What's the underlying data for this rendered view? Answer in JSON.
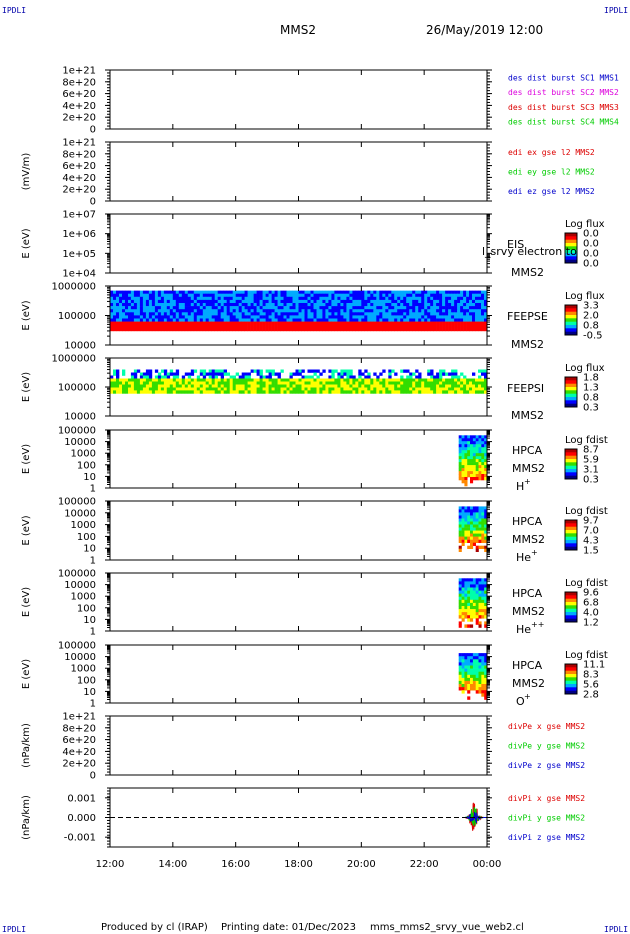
{
  "header": {
    "corner_left": "IPDLI",
    "corner_right": "IPDLI",
    "spacecraft": "MMS2",
    "datetime": "26/May/2019 12:00"
  },
  "footer": {
    "corner_left": "IPDLI",
    "corner_right": "IPDLI",
    "produced_by": "Produced by cl (IRAP)",
    "printing_date": "Printing date: 01/Dec/2023",
    "filename": "mms_mms2_srvy_vue_web2.cl"
  },
  "colors": {
    "spectrogram_palette": [
      "#000080",
      "#0000ff",
      "#00aaff",
      "#00ffaa",
      "#33dd00",
      "#ffff00",
      "#ff8800",
      "#ff0000",
      "#aa0000"
    ],
    "black": "#000000",
    "red": "#dd0000",
    "green": "#00cc00",
    "blue": "#0000cc",
    "magenta": "#dd00dd"
  },
  "chart_data": [
    {
      "type": "line",
      "ylabel": "",
      "ytick_labels": [
        "0",
        "2e+20",
        "4e+20",
        "6e+20",
        "8e+20",
        "1e+21"
      ],
      "ylim": [
        0,
        1e+21
      ],
      "series": [
        {
          "name": "des dist burst SC1 MMS1",
          "color": "#0000cc",
          "values": []
        },
        {
          "name": "des dist burst SC2 MMS2",
          "color": "#dd00dd",
          "values": []
        },
        {
          "name": "des dist burst SC3 MMS3",
          "color": "#dd0000",
          "values": []
        },
        {
          "name": "des dist burst SC4 MMS4",
          "color": "#00cc00",
          "values": []
        }
      ]
    },
    {
      "type": "line",
      "ylabel": "(mV/m)",
      "ytick_labels": [
        "0",
        "2e+20",
        "4e+20",
        "6e+20",
        "8e+20",
        "1e+21"
      ],
      "ylim": [
        0,
        1e+21
      ],
      "series": [
        {
          "name": "edi ex gse l2 MMS2",
          "color": "#dd0000",
          "values": []
        },
        {
          "name": "edi ey gse l2 MMS2",
          "color": "#00cc00",
          "values": []
        },
        {
          "name": "edi ez gse l2 MMS2",
          "color": "#0000cc",
          "values": []
        }
      ]
    },
    {
      "type": "heatmap",
      "ylabel": "E (eV)",
      "ytick_labels": [
        "1e+04",
        "1e+05",
        "1e+06",
        "1e+07"
      ],
      "ylim": [
        10000.0,
        10000000.0
      ],
      "instrument": "EIS",
      "spacecraft": "MMS2",
      "overlay_text": "l_srvy electron to",
      "colorbar": {
        "title": "Log flux",
        "ticks": [
          "0.0",
          "0.0",
          "0.0",
          "0.0"
        ]
      },
      "x_range": [],
      "e_range": []
    },
    {
      "type": "heatmap",
      "ylabel": "E (eV)",
      "ytick_labels": [
        "10000",
        "100000",
        "1000000"
      ],
      "ylim": [
        10000,
        1000000
      ],
      "instrument": "FEEPSE",
      "spacecraft": "MMS2",
      "colorbar": {
        "title": "Log flux",
        "ticks": [
          "3.3",
          "2.0",
          "0.8",
          "-0.5"
        ]
      },
      "x_range": [
        12,
        24
      ],
      "e_range": [
        30000,
        700000
      ]
    },
    {
      "type": "heatmap",
      "ylabel": "E (eV)",
      "ytick_labels": [
        "10000",
        "100000",
        "1000000"
      ],
      "ylim": [
        10000,
        1000000
      ],
      "instrument": "FEEPSI",
      "spacecraft": "MMS2",
      "colorbar": {
        "title": "Log flux",
        "ticks": [
          "1.8",
          "1.3",
          "0.8",
          "0.3"
        ]
      },
      "x_range": [
        12,
        24
      ],
      "e_range": [
        60000,
        400000
      ]
    },
    {
      "type": "heatmap",
      "ylabel": "E (eV)",
      "ytick_labels": [
        "1",
        "10",
        "100",
        "1000",
        "10000",
        "100000"
      ],
      "ylim": [
        1,
        100000
      ],
      "instrument": "HPCA",
      "spacecraft": "MMS2",
      "species": "H",
      "species_sup": "+",
      "colorbar": {
        "title": "Log fdist",
        "ticks": [
          "8.7",
          "5.9",
          "3.1",
          "0.3"
        ]
      },
      "x_range": [
        23.1,
        24
      ],
      "e_range": [
        1.5,
        35000
      ]
    },
    {
      "type": "heatmap",
      "ylabel": "E (eV)",
      "ytick_labels": [
        "1",
        "10",
        "100",
        "1000",
        "10000",
        "100000"
      ],
      "ylim": [
        1,
        100000
      ],
      "instrument": "HPCA",
      "spacecraft": "MMS2",
      "species": "He",
      "species_sup": "+",
      "colorbar": {
        "title": "Log fdist",
        "ticks": [
          "9.7",
          "7.0",
          "4.3",
          "1.5"
        ]
      },
      "x_range": [
        23.1,
        24
      ],
      "e_range": [
        5,
        35000
      ]
    },
    {
      "type": "heatmap",
      "ylabel": "E (eV)",
      "ytick_labels": [
        "1",
        "10",
        "100",
        "1000",
        "10000",
        "100000"
      ],
      "ylim": [
        1,
        100000
      ],
      "instrument": "HPCA",
      "spacecraft": "MMS2",
      "species": "He",
      "species_sup": "++",
      "colorbar": {
        "title": "Log fdist",
        "ticks": [
          "9.6",
          "6.8",
          "4.0",
          "1.2"
        ]
      },
      "x_range": [
        23.1,
        24
      ],
      "e_range": [
        2,
        35000
      ]
    },
    {
      "type": "heatmap",
      "ylabel": "E (eV)",
      "ytick_labels": [
        "1",
        "10",
        "100",
        "1000",
        "10000",
        "100000"
      ],
      "ylim": [
        1,
        100000
      ],
      "instrument": "HPCA",
      "spacecraft": "MMS2",
      "species": "O",
      "species_sup": "+",
      "colorbar": {
        "title": "Log fdist",
        "ticks": [
          "11.1",
          "8.3",
          "5.6",
          "2.8"
        ]
      },
      "x_range": [
        23.1,
        24
      ],
      "e_range": [
        2,
        20000
      ]
    },
    {
      "type": "line",
      "ylabel": "(nPa/km)",
      "ytick_labels": [
        "0",
        "2e+20",
        "4e+20",
        "6e+20",
        "8e+20",
        "1e+21"
      ],
      "ylim": [
        0,
        1e+21
      ],
      "series": [
        {
          "name": "divPe x gse MMS2",
          "color": "#dd0000",
          "values": []
        },
        {
          "name": "divPe y gse MMS2",
          "color": "#00cc00",
          "values": []
        },
        {
          "name": "divPe z gse MMS2",
          "color": "#0000cc",
          "values": []
        }
      ]
    },
    {
      "type": "line",
      "ylabel": "(nPa/km)",
      "ytick_labels": [
        "-0.001",
        "0.000",
        "0.001"
      ],
      "ylim": [
        -0.0015,
        0.0015
      ],
      "series": [
        {
          "name": "divPi x gse MMS2",
          "color": "#dd0000",
          "x_range": [
            23.3,
            24
          ],
          "amplitude": 0.0008
        },
        {
          "name": "divPi y gse MMS2",
          "color": "#00cc00",
          "x_range": [
            23.3,
            24
          ],
          "amplitude": 0.0006
        },
        {
          "name": "divPi z gse MMS2",
          "color": "#0000cc",
          "x_range": [
            23.3,
            24
          ],
          "amplitude": 0.0004
        }
      ]
    }
  ],
  "xaxis": {
    "tick_labels": [
      "12:00",
      "14:00",
      "16:00",
      "18:00",
      "20:00",
      "22:00",
      "00:00"
    ],
    "x_values": [
      12,
      14,
      16,
      18,
      20,
      22,
      24
    ],
    "xlim": [
      12,
      24
    ]
  }
}
